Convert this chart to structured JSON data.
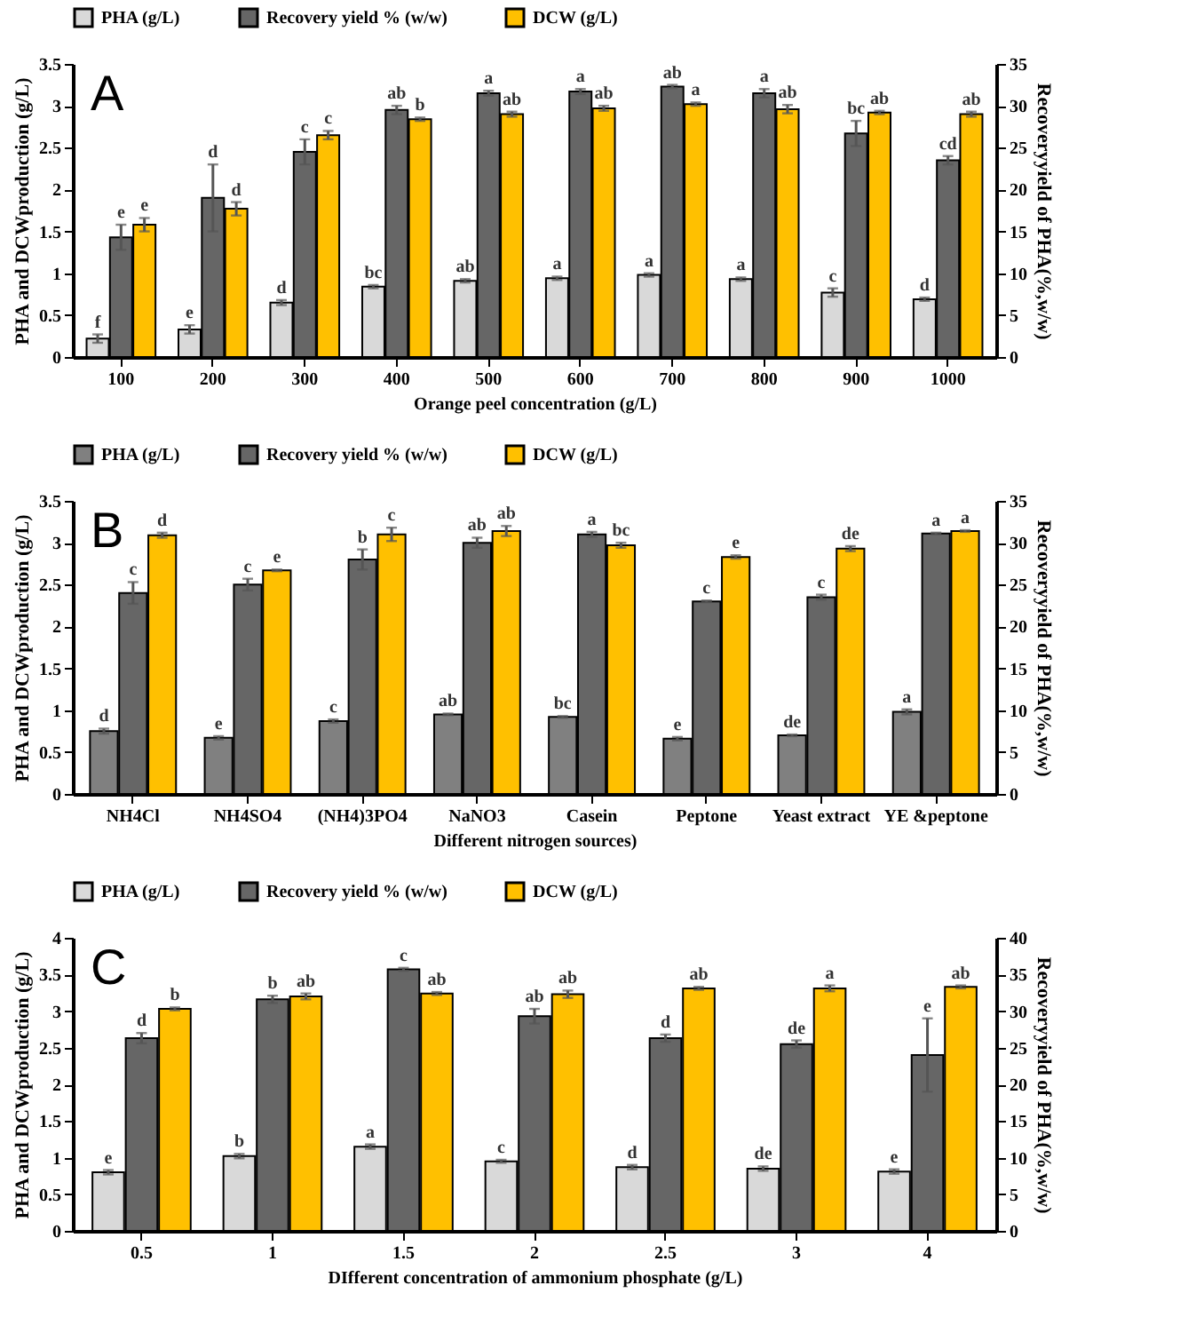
{
  "chart_data": [
    {
      "type": "bar",
      "title": "A",
      "xlabel": "Orange peel concentration (g/L)",
      "ylabel": "PHA and DCWproduction (g/L)",
      "y2label": "Recoveryyield of PHA(%,w/w)",
      "categories": [
        "100",
        "200",
        "300",
        "400",
        "500",
        "600",
        "700",
        "800",
        "900",
        "1000"
      ],
      "ylim": [
        0,
        3.5
      ],
      "yticks": [
        0,
        0.5,
        1,
        1.5,
        2,
        2.5,
        3,
        3.5
      ],
      "y2lim": [
        0,
        35
      ],
      "y2ticks": [
        0,
        5,
        10,
        15,
        20,
        25,
        30,
        35
      ],
      "legend": "top",
      "series": [
        {
          "name": "PHA (g/L)",
          "color": "#d9d9d9",
          "values": [
            0.22,
            0.33,
            0.65,
            0.84,
            0.91,
            0.94,
            0.98,
            0.93,
            0.77,
            0.69
          ],
          "errors": [
            0.05,
            0.05,
            0.03,
            0.02,
            0.02,
            0.02,
            0.02,
            0.02,
            0.05,
            0.02
          ],
          "value_labels": [
            "f",
            "e",
            "d",
            "bc",
            "ab",
            "a",
            "a",
            "a",
            "c",
            "d"
          ]
        },
        {
          "name": "Recovery yield % (w/w)",
          "color": "#666666",
          "axis": "y2",
          "values": [
            14.3,
            19,
            24.5,
            29.5,
            31.5,
            31.7,
            32.3,
            31.5,
            26.7,
            23.5
          ],
          "errors": [
            1.5,
            4,
            1.5,
            0.5,
            0.3,
            0.3,
            0.2,
            0.5,
            1.5,
            0.5
          ],
          "value_labels": [
            "e",
            "d",
            "c",
            "ab",
            "a",
            "a",
            "ab",
            "a",
            "bc",
            "cd"
          ]
        },
        {
          "name": "DCW (g/L)",
          "color": "#ffc000",
          "values": [
            1.58,
            1.77,
            2.65,
            2.84,
            2.9,
            2.97,
            3.02,
            2.96,
            2.92,
            2.9
          ],
          "errors": [
            0.08,
            0.08,
            0.05,
            0.02,
            0.03,
            0.03,
            0.02,
            0.05,
            0.02,
            0.03
          ],
          "value_labels": [
            "e",
            "d",
            "c",
            "b",
            "ab",
            "ab",
            "a",
            "ab",
            "ab",
            "ab"
          ]
        }
      ]
    },
    {
      "type": "bar",
      "title": "B",
      "xlabel": "Different nitrogen sources)",
      "ylabel": "PHA and DCWproduction (g/L)",
      "y2label": "Recoveryyield of PHA(%,w/w)",
      "categories": [
        "NH4Cl",
        "NH4SO4",
        "(NH4)3PO4",
        "NaNO3",
        "Casein",
        "Peptone",
        "Yeast extract",
        "YE &peptone"
      ],
      "ylim": [
        0,
        3.5
      ],
      "yticks": [
        0,
        0.5,
        1,
        1.5,
        2,
        2.5,
        3,
        3.5
      ],
      "y2lim": [
        0,
        35
      ],
      "y2ticks": [
        0,
        5,
        10,
        15,
        20,
        25,
        30,
        35
      ],
      "legend": "top",
      "series": [
        {
          "name": "PHA (g/L)",
          "color": "#808080",
          "values": [
            0.75,
            0.67,
            0.87,
            0.95,
            0.92,
            0.66,
            0.7,
            0.98
          ],
          "errors": [
            0.03,
            0.02,
            0.02,
            0.01,
            0.01,
            0.02,
            0.01,
            0.03
          ],
          "value_labels": [
            "d",
            "e",
            "c",
            "ab",
            "bc",
            "e",
            "de",
            "a"
          ]
        },
        {
          "name": "Recovery yield % (w/w)",
          "color": "#666666",
          "axis": "y2",
          "values": [
            24,
            25,
            28,
            30,
            31,
            23,
            23.5,
            31.1
          ],
          "errors": [
            1.3,
            0.7,
            1.2,
            0.6,
            0.3,
            0.1,
            0.3,
            0.1
          ],
          "value_labels": [
            "c",
            "c",
            "b",
            "ab",
            "a",
            "c",
            "c",
            "a"
          ]
        },
        {
          "name": "DCW (g/L)",
          "color": "#ffc000",
          "values": [
            3.09,
            2.67,
            3.1,
            3.14,
            2.97,
            2.83,
            2.93,
            3.14
          ],
          "errors": [
            0.03,
            0.01,
            0.08,
            0.06,
            0.03,
            0.02,
            0.03,
            0.01
          ],
          "value_labels": [
            "d",
            "e",
            "c",
            "ab",
            "bc",
            "e",
            "de",
            "a"
          ]
        }
      ]
    },
    {
      "type": "bar",
      "title": "C",
      "xlabel": "DIfferent concentration of ammonium phosphate (g/L)",
      "ylabel": "PHA and DCWproduction (g/L)",
      "y2label": "Recoveryyield of PHA(%,w/w)",
      "categories": [
        "0.5",
        "1",
        "1.5",
        "2",
        "2.5",
        "3",
        "4"
      ],
      "ylim": [
        0,
        4
      ],
      "yticks": [
        0,
        0.5,
        1,
        1.5,
        2,
        2.5,
        3,
        3.5,
        4
      ],
      "y2lim": [
        0,
        40
      ],
      "y2ticks": [
        0,
        5,
        10,
        15,
        20,
        25,
        30,
        35,
        40
      ],
      "legend": "top",
      "series": [
        {
          "name": "PHA (g/L)",
          "color": "#d9d9d9",
          "values": [
            0.8,
            1.02,
            1.15,
            0.95,
            0.87,
            0.85,
            0.81
          ],
          "errors": [
            0.03,
            0.03,
            0.03,
            0.02,
            0.03,
            0.03,
            0.03
          ],
          "value_labels": [
            "e",
            "b",
            "a",
            "c",
            "d",
            "de",
            "e"
          ]
        },
        {
          "name": "Recovery yield % (w/w)",
          "color": "#666666",
          "axis": "y2",
          "values": [
            26.3,
            31.6,
            35.7,
            29.3,
            26.3,
            25.5,
            24
          ],
          "errors": [
            0.7,
            0.5,
            0.2,
            1,
            0.5,
            0.5,
            5
          ],
          "value_labels": [
            "d",
            "b",
            "c",
            "ab",
            "d",
            "de",
            "e"
          ]
        },
        {
          "name": "DCW (g/L)",
          "color": "#ffc000",
          "values": [
            3.03,
            3.2,
            3.24,
            3.23,
            3.31,
            3.31,
            3.33
          ],
          "errors": [
            0.02,
            0.04,
            0.02,
            0.05,
            0.02,
            0.04,
            0.02
          ],
          "value_labels": [
            "b",
            "ab",
            "ab",
            "ab",
            "ab",
            "a",
            "ab"
          ]
        }
      ]
    }
  ]
}
